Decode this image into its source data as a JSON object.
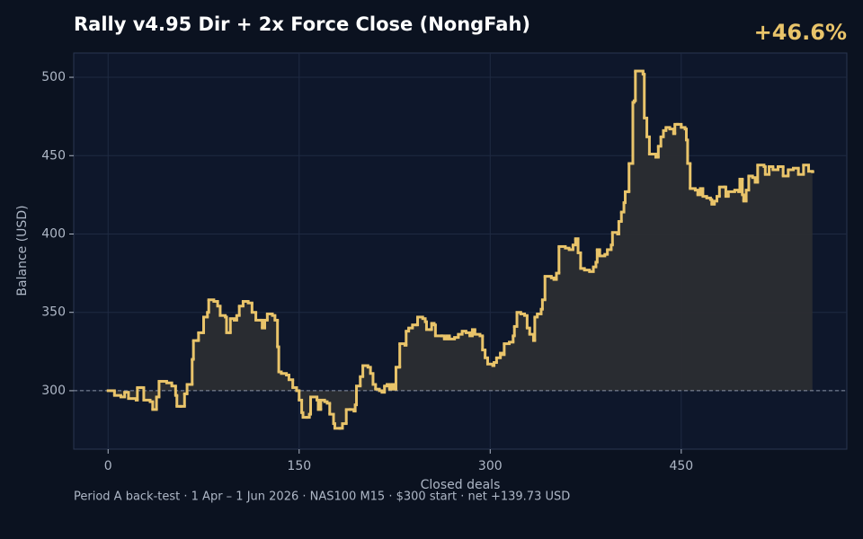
{
  "chart_data": {
    "type": "line",
    "title": "Rally v4.95 Dir + 2x Force Close (NongFah)",
    "annotation": "+46.6%",
    "xlabel": "Closed deals",
    "ylabel": "Balance (USD)",
    "footer": "Period A back-test  ·  1 Apr – 1 Jun 2026  ·  NAS100 M15  ·  $300 start  ·  net +139.73 USD",
    "line_style": "step",
    "color": "#e9c46a",
    "grid": true,
    "baseline": 300,
    "xlim": [
      -27,
      580
    ],
    "ylim": [
      262.7,
      515.5
    ],
    "xticks": [
      0,
      150,
      300,
      450
    ],
    "yticks": [
      300,
      350,
      400,
      450,
      500
    ],
    "x": [
      0,
      5,
      10,
      13,
      16,
      22,
      23,
      26,
      28,
      33,
      35,
      38,
      40,
      46,
      50,
      53,
      54,
      57,
      60,
      62,
      65,
      66,
      67,
      70,
      71,
      74,
      75,
      78,
      79,
      83,
      86,
      88,
      92,
      93,
      95,
      96,
      99,
      101,
      103,
      106,
      110,
      113,
      116,
      120,
      121,
      123,
      125,
      129,
      131,
      133,
      134,
      136,
      140,
      142,
      145,
      148,
      150,
      152,
      153,
      156,
      158,
      159,
      164,
      165,
      167,
      170,
      172,
      174,
      177,
      178,
      182,
      184,
      187,
      190,
      193,
      194,
      195,
      198,
      200,
      204,
      206,
      208,
      210,
      213,
      215,
      217,
      219,
      221,
      223,
      225,
      226,
      228,
      229,
      233,
      234,
      236,
      239,
      242,
      243,
      247,
      249,
      250,
      253,
      254,
      256,
      257,
      262,
      264,
      266,
      268,
      272,
      275,
      278,
      281,
      284,
      286,
      288,
      292,
      294,
      296,
      298,
      302,
      303,
      305,
      308,
      310,
      311,
      315,
      318,
      319,
      321,
      324,
      327,
      329,
      331,
      334,
      335,
      337,
      340,
      341,
      343,
      348,
      350,
      352,
      354,
      359,
      362,
      365,
      367,
      369,
      371,
      374,
      378,
      381,
      383,
      384,
      386,
      390,
      392,
      395,
      396,
      400,
      401,
      403,
      405,
      406,
      408,
      409,
      411,
      412,
      413,
      414,
      420,
      421,
      423,
      425,
      430,
      432,
      434,
      436,
      438,
      441,
      444,
      445,
      447,
      450,
      453,
      454,
      455,
      457,
      461,
      463,
      465,
      467,
      470,
      473,
      474,
      476,
      478,
      480,
      484,
      485,
      487,
      492,
      495,
      496,
      498,
      499,
      501,
      503,
      506,
      508,
      510,
      515,
      516,
      519,
      522,
      526,
      530,
      534,
      538,
      542,
      546,
      550,
      553
    ],
    "values": [
      300,
      297,
      296,
      299,
      295,
      294,
      302,
      302,
      294,
      293,
      288,
      296,
      306,
      305,
      303,
      297,
      290,
      290,
      298,
      304,
      304,
      320,
      332,
      332,
      337,
      337,
      347,
      350,
      358,
      357,
      354,
      348,
      347,
      337,
      337,
      346,
      345,
      348,
      354,
      357,
      356,
      350,
      345,
      345,
      340,
      345,
      349,
      348,
      345,
      328,
      312,
      311,
      310,
      307,
      302,
      300,
      294,
      286,
      283,
      283,
      285,
      296,
      294,
      288,
      294,
      293,
      292,
      285,
      279,
      276,
      276,
      279,
      288,
      288,
      287,
      291,
      303,
      309,
      316,
      315,
      311,
      304,
      301,
      300,
      299,
      303,
      304,
      301,
      304,
      301,
      315,
      315,
      330,
      329,
      338,
      340,
      342,
      342,
      347,
      346,
      344,
      339,
      339,
      343,
      342,
      335,
      335,
      333,
      335,
      333,
      334,
      336,
      338,
      337,
      335,
      339,
      336,
      335,
      326,
      321,
      317,
      316,
      318,
      321,
      324,
      323,
      330,
      331,
      335,
      341,
      350,
      349,
      348,
      340,
      336,
      332,
      347,
      349,
      352,
      358,
      373,
      372,
      371,
      375,
      392,
      391,
      390,
      393,
      397,
      388,
      378,
      377,
      376,
      379,
      382,
      390,
      386,
      387,
      390,
      393,
      401,
      400,
      408,
      414,
      420,
      427,
      427,
      445,
      445,
      484,
      485,
      504,
      502,
      474,
      462,
      451,
      449,
      456,
      462,
      466,
      468,
      467,
      464,
      470,
      470,
      468,
      467,
      460,
      445,
      429,
      428,
      425,
      429,
      424,
      423,
      422,
      419,
      421,
      424,
      430,
      430,
      424,
      427,
      428,
      427,
      435,
      425,
      421,
      428,
      437,
      436,
      433,
      444,
      443,
      438,
      443,
      441,
      443,
      437,
      441,
      442,
      438,
      444,
      440,
      439.73
    ]
  }
}
